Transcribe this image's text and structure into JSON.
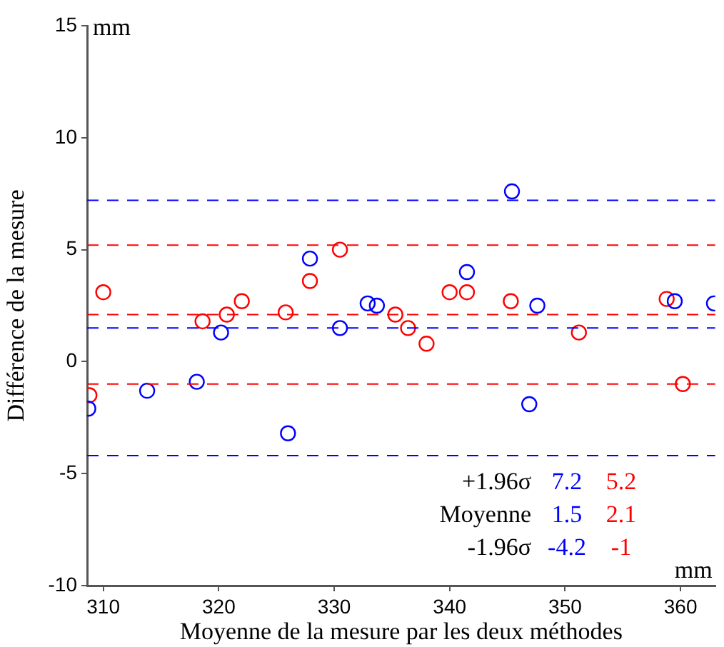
{
  "chart_data": {
    "type": "scatter",
    "xlabel": "Moyenne de la mesure par les deux méthodes",
    "ylabel": "Différence de la mesure",
    "xlim": [
      308.6,
      363
    ],
    "xticks": [
      310,
      320,
      330,
      340,
      350,
      360
    ],
    "ylim": [
      -10,
      15
    ],
    "yticks": [
      -10,
      -5,
      0,
      5,
      10,
      15
    ],
    "grid": false,
    "legend": false,
    "marker": "circle",
    "series": [
      {
        "color": "#0000ff",
        "x": [
          308.7,
          313.8,
          318.1,
          320.2,
          326.0,
          327.9,
          330.5,
          332.9,
          333.7,
          341.5,
          345.4,
          346.9,
          347.6,
          359.5,
          362.9
        ],
        "values": [
          -2.1,
          -1.3,
          -0.9,
          1.3,
          -3.2,
          4.6,
          1.5,
          2.6,
          2.5,
          4.0,
          7.6,
          -1.9,
          2.5,
          2.7,
          2.6
        ]
      },
      {
        "color": "#ff0000",
        "x": [
          308.8,
          310.0,
          318.6,
          320.7,
          322.0,
          325.8,
          327.9,
          330.5,
          335.3,
          336.4,
          338.0,
          340.0,
          341.5,
          345.3,
          351.2,
          358.8,
          360.2
        ],
        "values": [
          -1.5,
          3.1,
          1.8,
          2.1,
          2.7,
          2.2,
          3.6,
          5.0,
          2.1,
          1.5,
          0.8,
          3.1,
          3.1,
          2.7,
          1.3,
          2.8,
          -1.0
        ]
      }
    ],
    "ref_lines": [
      {
        "axis": "y",
        "value": 7.2,
        "label": "7.2",
        "color": "#0000ff",
        "line_style": "dashed"
      },
      {
        "axis": "y",
        "value": 1.5,
        "label": "1.5",
        "color": "#0000ff",
        "line_style": "dashed"
      },
      {
        "axis": "y",
        "value": -4.2,
        "label": "-4.2",
        "color": "#0000ff",
        "line_style": "dashed"
      },
      {
        "axis": "y",
        "value": 5.2,
        "label": "5.2",
        "color": "#ff0000",
        "line_style": "dashed"
      },
      {
        "axis": "y",
        "value": 2.1,
        "label": "2.1",
        "color": "#ff0000",
        "line_style": "dashed"
      },
      {
        "axis": "y",
        "value": -1,
        "label": "-1",
        "color": "#ff0000",
        "line_style": "dashed"
      }
    ],
    "annotations": [
      "mm",
      "mm",
      "+1.96σ",
      "Moyenne",
      "-1.96σ"
    ]
  }
}
